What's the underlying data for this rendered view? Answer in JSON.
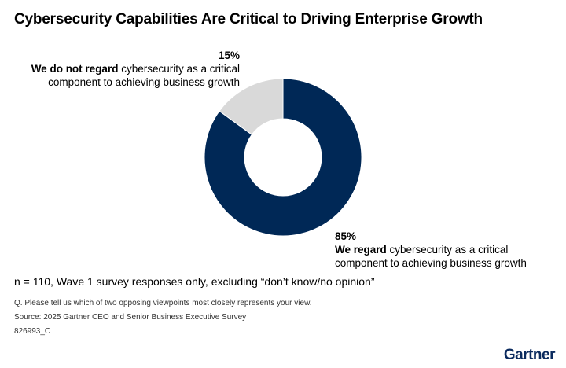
{
  "title": "Cybersecurity Capabilities Are Critical to Driving Enterprise Growth",
  "chart_data": {
    "type": "pie",
    "slices": [
      {
        "pct_label": "85%",
        "bold": "We regard",
        "text_line1": " cybersecurity as a critical",
        "text_line2": "component to achieving business growth",
        "value": 85,
        "color": "#002856"
      },
      {
        "pct_label": "15%",
        "bold": "We do not regard",
        "text_line1": " cybersecurity as a critical",
        "text_line2": "component to achieving business growth",
        "value": 15,
        "color": "#d9d9d9"
      }
    ]
  },
  "note": "n = 110, Wave 1 survey responses only, excluding “don’t know/no opinion”",
  "question": "Q. Please tell us which of two opposing viewpoints most closely represents your view.",
  "source": "Source: 2025 Gartner CEO and Senior Business Executive Survey",
  "code": "826993_C",
  "logo": "Gartner"
}
